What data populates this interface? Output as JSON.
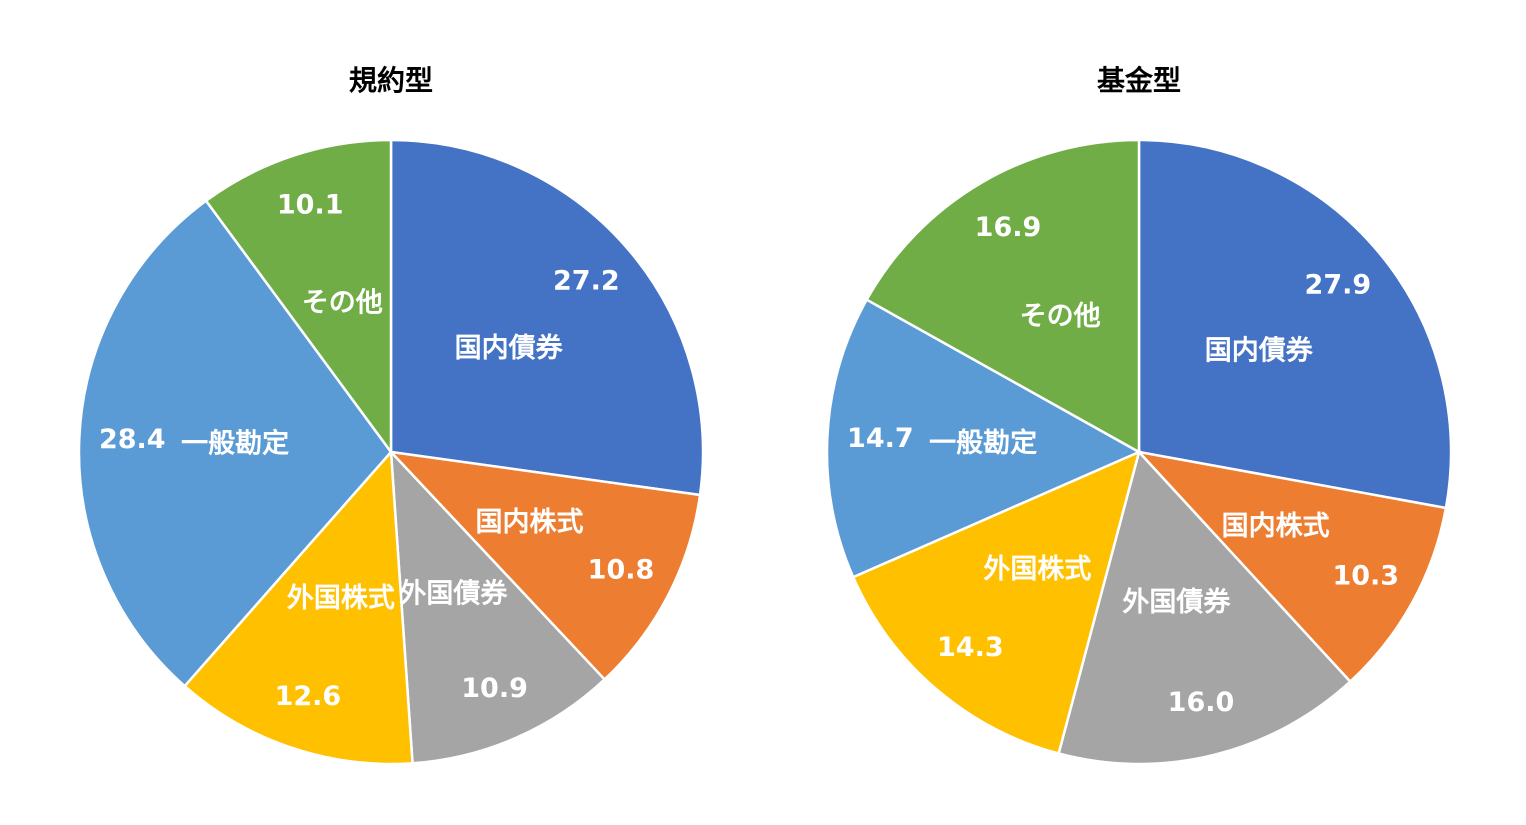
{
  "chart_data": [
    {
      "type": "pie",
      "title": "規約型",
      "categories": [
        "国内債券",
        "国内株式",
        "外国債券",
        "外国株式",
        "一般勘定",
        "その他"
      ],
      "values": [
        27.2,
        10.8,
        10.9,
        12.6,
        28.4,
        10.1
      ],
      "value_labels": [
        "27.2",
        "10.8",
        "10.9",
        "12.6",
        "28.4",
        "10.1"
      ],
      "colors": [
        "#4472c4",
        "#ed7d31",
        "#a5a5a5",
        "#ffc000",
        "#5b9bd5",
        "#70ad47"
      ]
    },
    {
      "type": "pie",
      "title": "基金型",
      "categories": [
        "国内債券",
        "国内株式",
        "外国債券",
        "外国株式",
        "一般勘定",
        "その他"
      ],
      "values": [
        27.9,
        10.3,
        16.0,
        14.3,
        14.7,
        16.9
      ],
      "value_labels": [
        "27.9",
        "10.3",
        "16.0",
        "14.3",
        "14.7",
        "16.9"
      ],
      "colors": [
        "#4472c4",
        "#ed7d31",
        "#a5a5a5",
        "#ffc000",
        "#5b9bd5",
        "#70ad47"
      ]
    }
  ]
}
